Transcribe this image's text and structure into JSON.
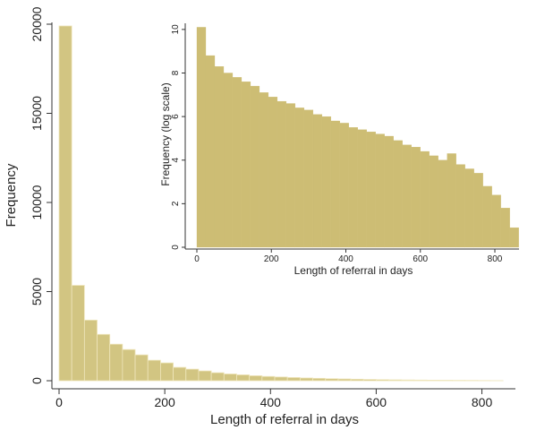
{
  "colors": {
    "bar_fill": "#d2c582",
    "bar_stroke": "#efe6bc",
    "inset_bar_fill": "#cdbd74",
    "axis": "#333333"
  },
  "chart_data": [
    {
      "type": "bar",
      "panel": "main",
      "title": "",
      "xlabel": "Length of referral in days",
      "ylabel": "Frequency",
      "xlim": [
        0,
        860
      ],
      "ylim": [
        0,
        20000
      ],
      "xticks": [
        0,
        200,
        400,
        600,
        800
      ],
      "yticks": [
        0,
        5000,
        10000,
        15000,
        20000
      ],
      "grid": false,
      "bin_width": 24,
      "x": [
        12,
        36,
        60,
        84,
        108,
        132,
        156,
        180,
        204,
        228,
        252,
        276,
        300,
        324,
        348,
        372,
        396,
        420,
        444,
        468,
        492,
        516,
        540,
        564,
        588,
        612,
        636,
        660,
        684,
        708,
        732,
        756,
        780,
        804,
        828
      ],
      "values": [
        19900,
        5350,
        3400,
        2600,
        2050,
        1750,
        1450,
        1150,
        1000,
        750,
        650,
        550,
        450,
        380,
        330,
        280,
        240,
        210,
        180,
        155,
        135,
        115,
        100,
        85,
        72,
        60,
        50,
        42,
        36,
        30,
        25,
        20,
        16,
        10,
        5
      ]
    },
    {
      "type": "bar",
      "panel": "inset",
      "title": "",
      "xlabel": "Length of referral in days",
      "ylabel": "Frequency (log scale)",
      "xlim": [
        -12,
        860
      ],
      "ylim": [
        0,
        10.2
      ],
      "xticks": [
        0,
        200,
        400,
        600,
        800
      ],
      "yticks": [
        0,
        2,
        4,
        6,
        8,
        10
      ],
      "grid": false,
      "bin_width": 24,
      "x": [
        12,
        36,
        60,
        84,
        108,
        132,
        156,
        180,
        204,
        228,
        252,
        276,
        300,
        324,
        348,
        372,
        396,
        420,
        444,
        468,
        492,
        516,
        540,
        564,
        588,
        612,
        636,
        660,
        684,
        708,
        732,
        756,
        780,
        804,
        828,
        852
      ],
      "values": [
        10.1,
        8.8,
        8.3,
        8.0,
        7.8,
        7.6,
        7.4,
        7.1,
        6.9,
        6.7,
        6.6,
        6.4,
        6.3,
        6.1,
        6.0,
        5.8,
        5.7,
        5.5,
        5.4,
        5.3,
        5.2,
        5.1,
        4.9,
        4.7,
        4.6,
        4.4,
        4.2,
        4.0,
        4.3,
        3.8,
        3.6,
        3.4,
        2.8,
        2.4,
        1.8,
        0.9
      ]
    }
  ]
}
